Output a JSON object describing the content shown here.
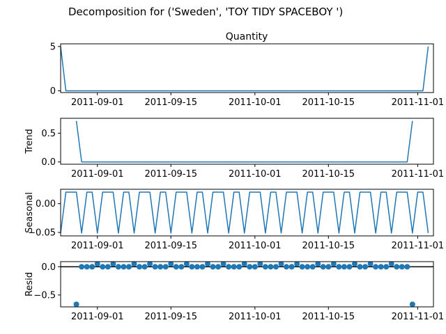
{
  "figure": {
    "suptitle": "Decomposition for ('Sweden', 'TOY TIDY SPACEBOY  ')"
  },
  "colors": {
    "line": "#1f77b4",
    "marker": "#1f77b4",
    "zero_line": "#000000",
    "axes_frame": "#000000",
    "background": "#ffffff"
  },
  "chart_data": [
    {
      "type": "line",
      "panel": "observed",
      "title": "Quantity",
      "ylabel": "",
      "x_start": "2011-08-25",
      "x_end": "2011-11-04",
      "xlim": [
        "2011-08-25",
        "2011-11-04"
      ],
      "ylim": [
        -0.2,
        5.3
      ],
      "yticks": [
        0,
        5
      ],
      "ytick_labels": [
        "0",
        "5"
      ],
      "xtick_dates": [
        "2011-09-01",
        "2011-09-15",
        "2011-10-01",
        "2011-10-15",
        "2011-11-01"
      ],
      "xtick_labels": [
        "2011-09-01",
        "2011-09-15",
        "2011-10-01",
        "2011-10-15",
        "2011-11-01"
      ],
      "values": [
        5,
        0,
        0,
        0,
        0,
        0,
        0,
        0,
        0,
        0,
        0,
        0,
        0,
        0,
        0,
        0,
        0,
        0,
        0,
        0,
        0,
        0,
        0,
        0,
        0,
        0,
        0,
        0,
        0,
        0,
        0,
        0,
        0,
        0,
        0,
        0,
        0,
        0,
        0,
        0,
        0,
        0,
        0,
        0,
        0,
        0,
        0,
        0,
        0,
        0,
        0,
        0,
        0,
        0,
        0,
        0,
        0,
        0,
        0,
        0,
        0,
        0,
        0,
        0,
        0,
        0,
        0,
        0,
        0,
        0,
        5
      ]
    },
    {
      "type": "line",
      "panel": "trend",
      "title": "",
      "ylabel": "Trend",
      "x_start": "2011-08-25",
      "x_end": "2011-11-04",
      "xlim": [
        "2011-08-25",
        "2011-11-04"
      ],
      "ylim": [
        -0.04,
        0.76
      ],
      "yticks": [
        0.0,
        0.5
      ],
      "ytick_labels": [
        "0.0",
        "0.5"
      ],
      "xtick_dates": [
        "2011-09-01",
        "2011-09-15",
        "2011-10-01",
        "2011-10-15",
        "2011-11-01"
      ],
      "xtick_labels": [
        "2011-09-01",
        "2011-09-15",
        "2011-10-01",
        "2011-10-15",
        "2011-11-01"
      ],
      "values": [
        null,
        null,
        null,
        0.714,
        0,
        0,
        0,
        0,
        0,
        0,
        0,
        0,
        0,
        0,
        0,
        0,
        0,
        0,
        0,
        0,
        0,
        0,
        0,
        0,
        0,
        0,
        0,
        0,
        0,
        0,
        0,
        0,
        0,
        0,
        0,
        0,
        0,
        0,
        0,
        0,
        0,
        0,
        0,
        0,
        0,
        0,
        0,
        0,
        0,
        0,
        0,
        0,
        0,
        0,
        0,
        0,
        0,
        0,
        0,
        0,
        0,
        0,
        0,
        0,
        0,
        0,
        0,
        0.714,
        null,
        null,
        null
      ]
    },
    {
      "type": "line",
      "panel": "seasonal",
      "title": "",
      "ylabel": "Seasonal",
      "x_start": "2011-08-25",
      "x_end": "2011-11-04",
      "xlim": [
        "2011-08-25",
        "2011-11-04"
      ],
      "ylim": [
        -0.056,
        0.025
      ],
      "yticks": [
        0.0,
        -0.05
      ],
      "ytick_labels": [
        "0.00",
        "−0.05"
      ],
      "xtick_dates": [
        "2011-09-01",
        "2011-09-15",
        "2011-10-01",
        "2011-10-15",
        "2011-11-01"
      ],
      "xtick_labels": [
        "2011-09-01",
        "2011-09-15",
        "2011-10-01",
        "2011-10-15",
        "2011-11-01"
      ],
      "pattern": [
        -0.051,
        0.02,
        0.02,
        0.02,
        -0.051,
        0.02,
        0.02
      ],
      "values": [
        -0.051,
        0.02,
        0.02,
        0.02,
        -0.051,
        0.02,
        0.02,
        -0.051,
        0.02,
        0.02,
        0.02,
        -0.051,
        0.02,
        0.02,
        -0.051,
        0.02,
        0.02,
        0.02,
        -0.051,
        0.02,
        0.02,
        -0.051,
        0.02,
        0.02,
        0.02,
        -0.051,
        0.02,
        0.02,
        -0.051,
        0.02,
        0.02,
        0.02,
        -0.051,
        0.02,
        0.02,
        -0.051,
        0.02,
        0.02,
        0.02,
        -0.051,
        0.02,
        0.02,
        -0.051,
        0.02,
        0.02,
        0.02,
        -0.051,
        0.02,
        0.02,
        -0.051,
        0.02,
        0.02,
        0.02,
        -0.051,
        0.02,
        0.02,
        -0.051,
        0.02,
        0.02,
        0.02,
        -0.051,
        0.02,
        0.02,
        -0.051,
        0.02,
        0.02,
        0.02,
        -0.051,
        0.02,
        0.02,
        -0.051
      ]
    },
    {
      "type": "scatter",
      "panel": "resid",
      "title": "",
      "ylabel": "Resid",
      "x_start": "2011-08-25",
      "x_end": "2011-11-04",
      "xlim": [
        "2011-08-25",
        "2011-11-04"
      ],
      "ylim": [
        -0.71,
        0.09
      ],
      "yticks": [
        0.0,
        -0.5
      ],
      "ytick_labels": [
        "0.0",
        "−0.5"
      ],
      "xtick_dates": [
        "2011-09-01",
        "2011-09-15",
        "2011-10-01",
        "2011-10-15",
        "2011-11-01"
      ],
      "xtick_labels": [
        "2011-09-01",
        "2011-09-15",
        "2011-10-01",
        "2011-10-15",
        "2011-11-01"
      ],
      "zero_line": 0,
      "values": [
        null,
        null,
        null,
        -0.665,
        -0.001,
        -0.001,
        -0.001,
        0.051,
        -0.001,
        -0.001,
        0.051,
        -0.001,
        -0.001,
        -0.001,
        0.051,
        -0.001,
        -0.001,
        0.051,
        -0.001,
        -0.001,
        -0.001,
        0.051,
        -0.001,
        -0.001,
        0.051,
        -0.001,
        -0.001,
        -0.001,
        0.051,
        -0.001,
        -0.001,
        0.051,
        -0.001,
        -0.001,
        -0.001,
        0.051,
        -0.001,
        -0.001,
        0.051,
        -0.001,
        -0.001,
        -0.001,
        0.051,
        -0.001,
        -0.001,
        0.051,
        -0.001,
        -0.001,
        -0.001,
        0.051,
        -0.001,
        -0.001,
        0.051,
        -0.001,
        -0.001,
        -0.001,
        0.051,
        -0.001,
        -0.001,
        0.051,
        -0.001,
        -0.001,
        -0.001,
        0.051,
        -0.001,
        -0.001,
        -0.001,
        -0.665,
        null,
        null,
        null
      ]
    }
  ]
}
